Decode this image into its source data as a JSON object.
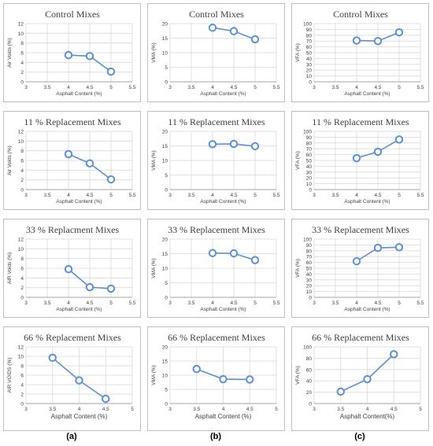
{
  "column_labels": [
    "(a)",
    "(b)",
    "(c)"
  ],
  "chart_data": [
    {
      "id": "a1",
      "type": "line",
      "title": "Control Mixes",
      "xlabel": "Asphalt Content (%)",
      "ylabel": "Air Voids (%)",
      "xlim": [
        3,
        5.5
      ],
      "xticks": [
        3,
        3.5,
        4,
        4.5,
        5,
        5.5
      ],
      "xtick_labels": [
        "3",
        "3.5",
        "4",
        "4.5",
        "5",
        "5.5"
      ],
      "ylim": [
        0,
        12
      ],
      "yticks": [
        0,
        2,
        4,
        6,
        8,
        10,
        12
      ],
      "ytick_labels": [
        "0",
        "2",
        "4",
        "6",
        "8",
        "10",
        "12"
      ],
      "grid": true,
      "series": [
        {
          "x": [
            4,
            4.5,
            5
          ],
          "y": [
            5.5,
            5.3,
            2.1
          ]
        }
      ]
    },
    {
      "id": "b1",
      "type": "line",
      "title": "Control Mixes",
      "xlabel": "Asphalt Content (%)",
      "ylabel": "VMA (%)",
      "xlim": [
        3,
        5.5
      ],
      "xticks": [
        3,
        3.5,
        4,
        4.5,
        5,
        5.5
      ],
      "xtick_labels": [
        "3",
        "3.5",
        "4",
        "4.5",
        "5",
        "5.5"
      ],
      "ylim": [
        0,
        20
      ],
      "yticks": [
        0,
        5,
        10,
        15,
        20
      ],
      "ytick_labels": [
        "0",
        "5",
        "10",
        "15",
        "20"
      ],
      "grid": true,
      "series": [
        {
          "x": [
            4,
            4.5,
            5
          ],
          "y": [
            18.6,
            17.4,
            14.6
          ]
        }
      ]
    },
    {
      "id": "c1",
      "type": "line",
      "title": "Control Mixes",
      "xlabel": "Asphalt Content (%)",
      "ylabel": "VFA (%)",
      "xlim": [
        3,
        5.5
      ],
      "xticks": [
        3,
        3.5,
        4,
        4.5,
        5,
        5.5
      ],
      "xtick_labels": [
        "3",
        "3.5",
        "4",
        "4.5",
        "5",
        "5.5"
      ],
      "ylim": [
        0,
        100
      ],
      "yticks": [
        0,
        10,
        20,
        30,
        40,
        50,
        60,
        70,
        80,
        90,
        100
      ],
      "ytick_labels": [
        "0",
        "10",
        "20",
        "30",
        "40",
        "50",
        "60",
        "70",
        "80",
        "90",
        "100"
      ],
      "grid": true,
      "series": [
        {
          "x": [
            4,
            4.5,
            5
          ],
          "y": [
            71,
            70,
            85
          ]
        }
      ]
    },
    {
      "id": "a2",
      "type": "line",
      "title": "11 % Replacement Mixes",
      "xlabel": "Asphalt Content (%)",
      "ylabel": "Air Voids (%)",
      "xlim": [
        3,
        5.5
      ],
      "xticks": [
        3,
        3.5,
        4,
        4.5,
        5,
        5.5
      ],
      "xtick_labels": [
        "3",
        "3.5",
        "4",
        "4.5",
        "5",
        "5.5"
      ],
      "ylim": [
        0,
        12
      ],
      "yticks": [
        0,
        2,
        4,
        6,
        8,
        10,
        12
      ],
      "ytick_labels": [
        "0",
        "2",
        "4",
        "6",
        "8",
        "10",
        "12"
      ],
      "grid": true,
      "series": [
        {
          "x": [
            4,
            4.5,
            5
          ],
          "y": [
            7.3,
            5.4,
            2.1
          ]
        }
      ]
    },
    {
      "id": "b2",
      "type": "line",
      "title": "11 % Replacement Mixes",
      "xlabel": "Asphalt Content (%)",
      "ylabel": "VMA (%)",
      "xlim": [
        3,
        5.5
      ],
      "xticks": [
        3,
        3.5,
        4,
        4.5,
        5,
        5.5
      ],
      "xtick_labels": [
        "3",
        "3.5",
        "4",
        "4.5",
        "5",
        "5.5"
      ],
      "ylim": [
        0,
        20
      ],
      "yticks": [
        0,
        5,
        10,
        15,
        20
      ],
      "ytick_labels": [
        "0",
        "5",
        "10",
        "15",
        "20"
      ],
      "grid": true,
      "series": [
        {
          "x": [
            4,
            4.5,
            5
          ],
          "y": [
            15.6,
            15.7,
            14.9
          ]
        }
      ]
    },
    {
      "id": "c2",
      "type": "line",
      "title": "11 % Replacement Mixes",
      "xlabel": "Asphalt Content (%)",
      "ylabel": "VFA (%)",
      "xlim": [
        3,
        5.5
      ],
      "xticks": [
        3,
        3.5,
        4,
        4.5,
        5,
        5.5
      ],
      "xtick_labels": [
        "3",
        "3.5",
        "4",
        "4.5",
        "5",
        "5.5"
      ],
      "ylim": [
        0,
        100
      ],
      "yticks": [
        0,
        10,
        20,
        30,
        40,
        50,
        60,
        70,
        80,
        90,
        100
      ],
      "ytick_labels": [
        "0",
        "10",
        "20",
        "30",
        "40",
        "50",
        "60",
        "70",
        "80",
        "90",
        "100"
      ],
      "grid": true,
      "series": [
        {
          "x": [
            4,
            4.5,
            5
          ],
          "y": [
            54,
            65,
            86
          ]
        }
      ]
    },
    {
      "id": "a3",
      "type": "line",
      "title": "33 % Replacment Mixes",
      "xlabel": "Asphalt Content (%)",
      "ylabel": "AIR Voids (%)",
      "xlim": [
        3,
        5.5
      ],
      "xticks": [
        3,
        3.5,
        4,
        4.5,
        5,
        5.5
      ],
      "xtick_labels": [
        "3",
        "3.5",
        "4",
        "4.5",
        "5",
        "5.5"
      ],
      "ylim": [
        0,
        12
      ],
      "yticks": [
        0,
        2,
        4,
        6,
        8,
        10,
        12
      ],
      "ytick_labels": [
        "0",
        "2",
        "4",
        "6",
        "8",
        "10",
        "12"
      ],
      "grid": true,
      "series": [
        {
          "x": [
            4,
            4.5,
            5
          ],
          "y": [
            5.8,
            2.1,
            1.8
          ]
        }
      ]
    },
    {
      "id": "b3",
      "type": "line",
      "title": "33 % Replacement Mixes",
      "xlabel": "Asphalt Content (%)",
      "ylabel": "VMA (%)",
      "xlim": [
        3,
        5.5
      ],
      "xticks": [
        3,
        3.5,
        4,
        4.5,
        5,
        5.5
      ],
      "xtick_labels": [
        "3",
        "3.5",
        "4",
        "4.5",
        "5",
        "5.5"
      ],
      "ylim": [
        0,
        20
      ],
      "yticks": [
        0,
        5,
        10,
        15,
        20
      ],
      "ytick_labels": [
        "0",
        "5",
        "10",
        "15",
        "20"
      ],
      "grid": true,
      "series": [
        {
          "x": [
            4,
            4.5,
            5
          ],
          "y": [
            15.2,
            15.1,
            12.8
          ]
        }
      ]
    },
    {
      "id": "c3",
      "type": "line",
      "title": "33 % Replacement Mixes",
      "xlabel": "Asphalt Content (%)",
      "ylabel": "VFA (%)",
      "xlim": [
        3,
        5.5
      ],
      "xticks": [
        3,
        3.5,
        4,
        4.5,
        5,
        5.5
      ],
      "xtick_labels": [
        "3",
        "3.5",
        "4",
        "4.5",
        "5",
        "5.5"
      ],
      "ylim": [
        0,
        100
      ],
      "yticks": [
        0,
        10,
        20,
        30,
        40,
        50,
        60,
        70,
        80,
        90,
        100
      ],
      "ytick_labels": [
        "0",
        "10",
        "20",
        "30",
        "40",
        "50",
        "60",
        "70",
        "80",
        "90",
        "100"
      ],
      "grid": true,
      "series": [
        {
          "x": [
            4,
            4.5,
            5
          ],
          "y": [
            62,
            85,
            86
          ]
        }
      ]
    },
    {
      "id": "a4",
      "type": "line",
      "title": "66 % Replacement Mixes",
      "xlabel": "Asphalt Content (%)",
      "ylabel": "AIR VOIDS (%)",
      "xlim": [
        3,
        5
      ],
      "xticks": [
        3,
        3.5,
        4,
        4.5,
        5
      ],
      "xtick_labels": [
        "3",
        "3.5",
        "4",
        "4.5",
        "5"
      ],
      "ylim": [
        0,
        12
      ],
      "yticks": [
        0,
        2,
        4,
        6,
        8,
        10,
        12
      ],
      "ytick_labels": [
        "0",
        "2",
        "4",
        "6",
        "8",
        "10",
        "12"
      ],
      "grid": true,
      "series": [
        {
          "x": [
            3.5,
            4,
            4.5
          ],
          "y": [
            9.7,
            4.9,
            1.0
          ]
        }
      ]
    },
    {
      "id": "b4",
      "type": "line",
      "title": "66 % Replacement Mixes",
      "xlabel": "Asphalt Content (%)",
      "ylabel": "VMA (%)",
      "xlim": [
        3,
        5
      ],
      "xticks": [
        3,
        3.5,
        4,
        4.5,
        5
      ],
      "xtick_labels": [
        "3",
        "3.5",
        "4",
        "4.5",
        "5"
      ],
      "ylim": [
        0,
        20
      ],
      "yticks": [
        0,
        5,
        10,
        15,
        20
      ],
      "ytick_labels": [
        "0",
        "5",
        "10",
        "15",
        "20"
      ],
      "grid": true,
      "series": [
        {
          "x": [
            3.5,
            4,
            4.5
          ],
          "y": [
            12.2,
            8.6,
            8.5
          ]
        }
      ]
    },
    {
      "id": "c4",
      "type": "line",
      "title": "66 % Replacement Mixes",
      "xlabel": "Asphalt Content(%)",
      "ylabel": "VFA (%)",
      "xlim": [
        3,
        5
      ],
      "xticks": [
        3,
        3.5,
        4,
        4.5,
        5
      ],
      "xtick_labels": [
        "3",
        "3.5",
        "4",
        "4.5",
        "5"
      ],
      "ylim": [
        0,
        100
      ],
      "yticks": [
        0,
        20,
        40,
        60,
        80,
        100
      ],
      "ytick_labels": [
        "0",
        "20",
        "40",
        "60",
        "80",
        "100"
      ],
      "grid": true,
      "series": [
        {
          "x": [
            3.5,
            4,
            4.5
          ],
          "y": [
            21,
            43,
            87
          ]
        }
      ]
    }
  ],
  "colors": {
    "line": "#5b8fd6",
    "marker": "#5b8fd6",
    "grid": "#d9d9d9",
    "frame": "#bfbfbf",
    "axis_text": "#404040",
    "title": "#404040"
  }
}
